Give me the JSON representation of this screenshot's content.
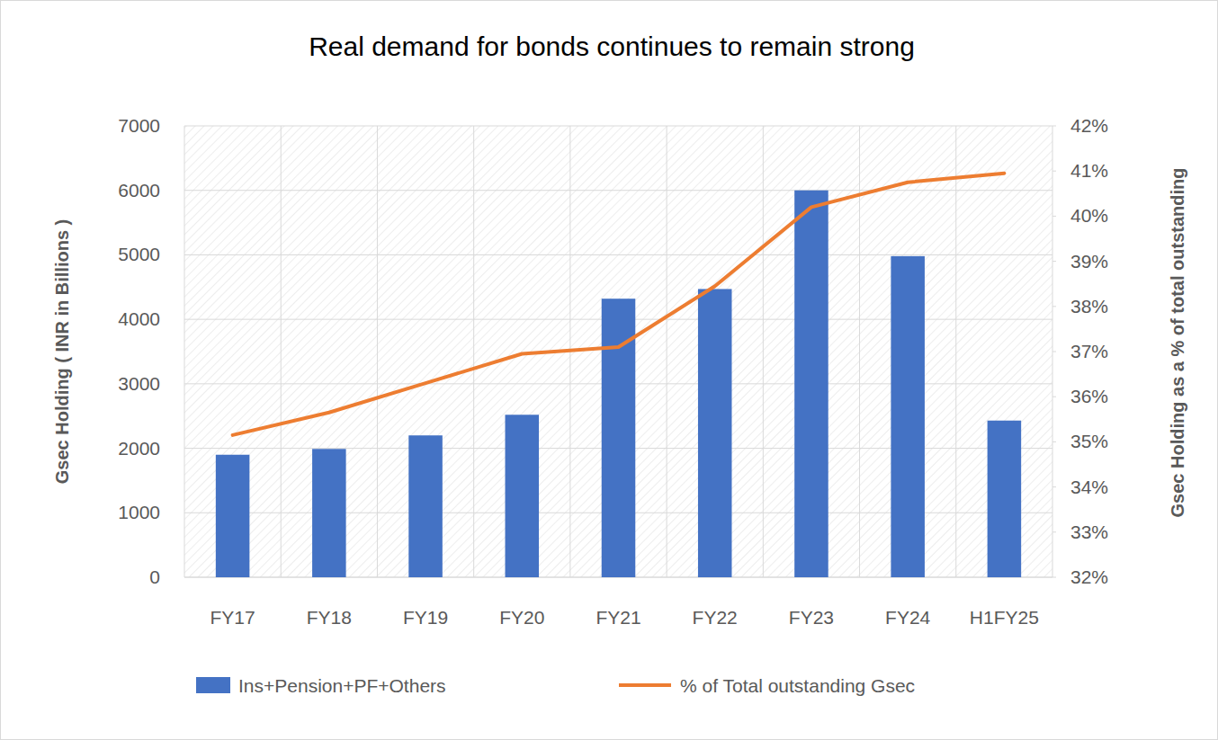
{
  "chart_data": {
    "type": "bar",
    "title": "Real demand for bonds continues to remain strong",
    "y_label": "Gsec Holding ( INR in Billions )",
    "y2_label": "Gsec Holding as a % of total  outstanding",
    "categories": [
      "FY17",
      "FY18",
      "FY19",
      "FY20",
      "FY21",
      "FY22",
      "FY23",
      "FY24",
      "H1FY25"
    ],
    "series": [
      {
        "name": "Ins+Pension+PF+Others",
        "type": "bar",
        "color": "#4472c4",
        "values": [
          1900,
          1990,
          2200,
          2520,
          4320,
          4470,
          6000,
          4980,
          2430
        ]
      },
      {
        "name": "% of Total outstanding Gsec",
        "type": "line",
        "axis": "y2",
        "color": "#ed7d31",
        "line_style": "solid",
        "values": [
          35.15,
          35.65,
          36.3,
          36.95,
          37.1,
          38.45,
          40.2,
          40.75,
          40.95
        ]
      }
    ],
    "ylim": [
      0,
      7000
    ],
    "yticks": [
      0,
      1000,
      2000,
      3000,
      4000,
      5000,
      6000,
      7000
    ],
    "y2lim": [
      32,
      42
    ],
    "y2ticks": [
      {
        "value": 32,
        "label": "32%"
      },
      {
        "value": 33,
        "label": "33%"
      },
      {
        "value": 34,
        "label": "34%"
      },
      {
        "value": 35,
        "label": "35%"
      },
      {
        "value": 36,
        "label": "36%"
      },
      {
        "value": 37,
        "label": "37%"
      },
      {
        "value": 38,
        "label": "38%"
      },
      {
        "value": 39,
        "label": "39%"
      },
      {
        "value": 40,
        "label": "40%"
      },
      {
        "value": 41,
        "label": "41%"
      },
      {
        "value": 42,
        "label": "42%"
      }
    ],
    "grid": true,
    "legend": "bottom"
  }
}
